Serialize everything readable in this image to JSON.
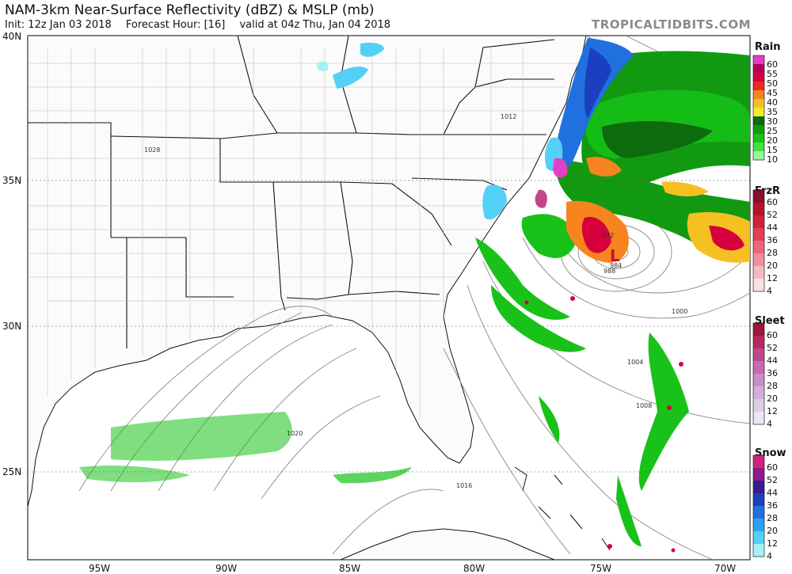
{
  "header": {
    "title": "NAM-3km Near-Surface Reflectivity (dBZ) & MSLP (mb)",
    "init": "Init: 12z Jan 03 2018",
    "forecast_hour": "Forecast Hour: [16]",
    "valid": "valid at 04z Thu, Jan 04 2018",
    "brand": "TROPICALTIDBITS.COM"
  },
  "axes": {
    "lat_labels": [
      "40N",
      "35N",
      "30N",
      "25N"
    ],
    "lon_labels": [
      "95W",
      "90W",
      "85W",
      "80W",
      "75W",
      "70W"
    ]
  },
  "isobars": [
    "1028",
    "1012",
    "1020",
    "1016",
    "1000",
    "1004",
    "1008",
    "984",
    "988",
    "972"
  ],
  "low_center": {
    "label": "L"
  },
  "colorbars": [
    {
      "name": "Rain",
      "ticks": [
        "60",
        "55",
        "50",
        "45",
        "40",
        "35",
        "30",
        "25",
        "20",
        "15",
        "10"
      ],
      "colors": [
        "#e33ec8",
        "#b3005a",
        "#d6003c",
        "#ee2a1f",
        "#f7841f",
        "#f6c023",
        "#f2e928",
        "#0c6b0c",
        "#119a11",
        "#18c218",
        "#3ee33e",
        "#9cf59c"
      ]
    },
    {
      "name": "FrzR",
      "ticks": [
        "60",
        "52",
        "44",
        "36",
        "28",
        "20",
        "12",
        "4"
      ],
      "colors": [
        "#8a0f2a",
        "#b5122e",
        "#d2213a",
        "#e23e55",
        "#ea6679",
        "#f08ea0",
        "#f6b8c6",
        "#fbdde5"
      ]
    },
    {
      "name": "Sleet",
      "ticks": [
        "60",
        "52",
        "44",
        "36",
        "28",
        "20",
        "12",
        "4"
      ],
      "colors": [
        "#a1143a",
        "#b42a5e",
        "#c2478a",
        "#c86ab0",
        "#c98dc8",
        "#cfaedb",
        "#ddcbe8",
        "#efe6f5"
      ]
    },
    {
      "name": "Snow",
      "ticks": [
        "60",
        "52",
        "44",
        "36",
        "28",
        "20",
        "12",
        "4"
      ],
      "colors": [
        "#d3247d",
        "#8e1a8a",
        "#3a1a8e",
        "#1b3fbf",
        "#2070e0",
        "#2aa3ef",
        "#52d0f5",
        "#a6f0fa"
      ]
    }
  ],
  "colors": {
    "rain_green": "#119a11",
    "snow_blue": "#2070e0",
    "mix_pink": "#e33ec8",
    "heavy_red": "#d6003c",
    "moderate_orange": "#f7841f"
  }
}
